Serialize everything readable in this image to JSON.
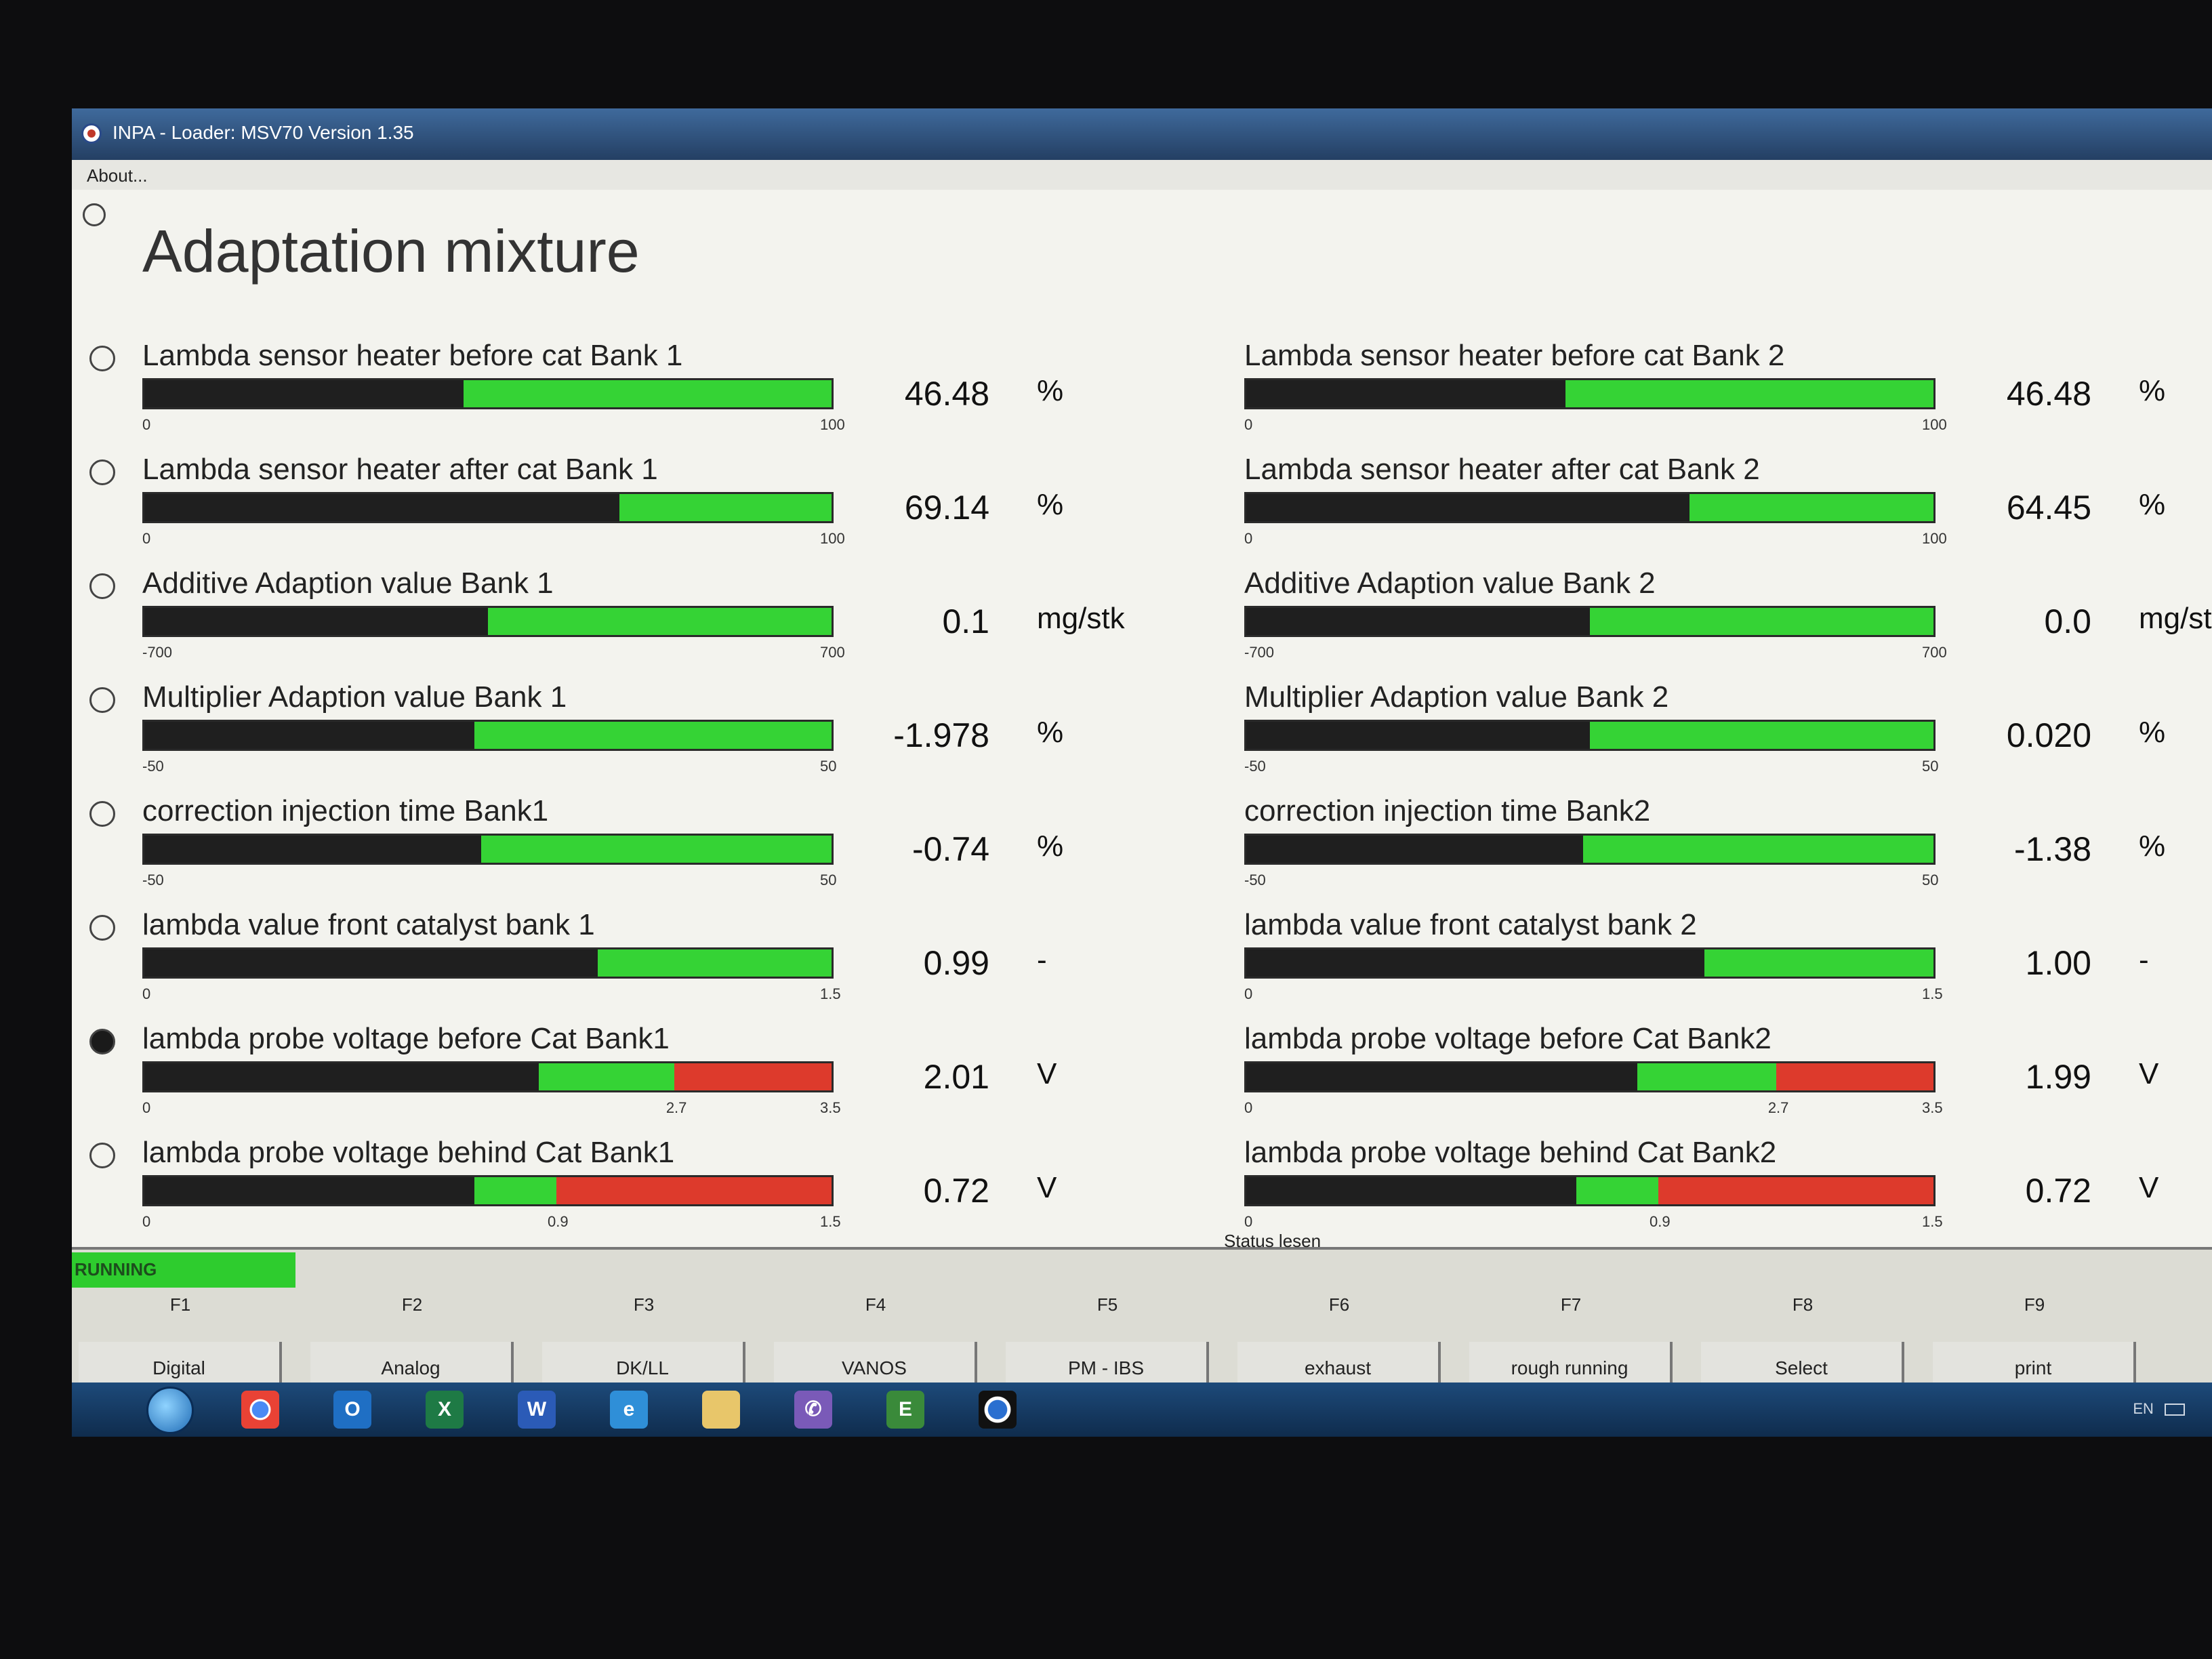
{
  "window": {
    "title": "INPA - Loader: MSV70 Version 1.35"
  },
  "menu": {
    "about": "About..."
  },
  "page_title": "Adaptation mixture",
  "left_meters": [
    {
      "label": "Lambda sensor heater before cat Bank 1",
      "value": "46.48",
      "unit": "%",
      "min_label": "0",
      "mid_label": "",
      "max_label": "100",
      "fill_fraction": 0.4648,
      "zone": "green",
      "checked": false
    },
    {
      "label": "Lambda sensor heater after cat Bank 1",
      "value": "69.14",
      "unit": "%",
      "min_label": "0",
      "mid_label": "",
      "max_label": "100",
      "fill_fraction": 0.6914,
      "zone": "green",
      "checked": false
    },
    {
      "label": "Additive Adaption value Bank 1",
      "value": "0.1",
      "unit": "mg/stk",
      "min_label": "-700",
      "mid_label": "",
      "max_label": "700",
      "fill_fraction": 0.5,
      "zone": "green",
      "checked": false
    },
    {
      "label": "Multiplier Adaption value Bank 1",
      "value": "-1.978",
      "unit": "%",
      "min_label": "-50",
      "mid_label": "",
      "max_label": "50",
      "fill_fraction": 0.48,
      "zone": "green",
      "checked": false
    },
    {
      "label": "correction injection time Bank1",
      "value": "-0.74",
      "unit": "%",
      "min_label": "-50",
      "mid_label": "",
      "max_label": "50",
      "fill_fraction": 0.49,
      "zone": "green",
      "checked": false
    },
    {
      "label": "lambda value front catalyst bank 1",
      "value": "0.99",
      "unit": "-",
      "min_label": "0",
      "mid_label": "",
      "max_label": "1.5",
      "fill_fraction": 0.66,
      "zone": "green",
      "checked": false
    },
    {
      "label": "lambda probe voltage before Cat Bank1",
      "value": "2.01",
      "unit": "V",
      "min_label": "0",
      "mid_label": "2.7",
      "max_label": "3.5",
      "fill_fraction": 0.5743,
      "zone": "split",
      "zone_split_fraction": 0.7714,
      "checked": true
    },
    {
      "label": "lambda probe voltage behind Cat Bank1",
      "value": "0.72",
      "unit": "V",
      "min_label": "0",
      "mid_label": "0.9",
      "max_label": "1.5",
      "fill_fraction": 0.48,
      "zone": "split",
      "zone_split_fraction": 0.6,
      "checked": false
    }
  ],
  "right_meters": [
    {
      "label": "Lambda sensor heater before cat Bank 2",
      "value": "46.48",
      "unit": "%",
      "min_label": "0",
      "mid_label": "",
      "max_label": "100",
      "fill_fraction": 0.4648,
      "zone": "green"
    },
    {
      "label": "Lambda sensor heater after cat Bank 2",
      "value": "64.45",
      "unit": "%",
      "min_label": "0",
      "mid_label": "",
      "max_label": "100",
      "fill_fraction": 0.6445,
      "zone": "green"
    },
    {
      "label": "Additive Adaption value Bank 2",
      "value": "0.0",
      "unit": "mg/stk",
      "min_label": "-700",
      "mid_label": "",
      "max_label": "700",
      "fill_fraction": 0.5,
      "zone": "green"
    },
    {
      "label": "Multiplier Adaption value Bank 2",
      "value": "0.020",
      "unit": "%",
      "min_label": "-50",
      "mid_label": "",
      "max_label": "50",
      "fill_fraction": 0.5,
      "zone": "green"
    },
    {
      "label": "correction injection time Bank2",
      "value": "-1.38",
      "unit": "%",
      "min_label": "-50",
      "mid_label": "",
      "max_label": "50",
      "fill_fraction": 0.49,
      "zone": "green"
    },
    {
      "label": "lambda value front catalyst bank 2",
      "value": "1.00",
      "unit": "-",
      "min_label": "0",
      "mid_label": "",
      "max_label": "1.5",
      "fill_fraction": 0.6667,
      "zone": "green"
    },
    {
      "label": "lambda probe voltage before Cat Bank2",
      "value": "1.99",
      "unit": "V",
      "min_label": "0",
      "mid_label": "2.7",
      "max_label": "3.5",
      "fill_fraction": 0.5686,
      "zone": "split",
      "zone_split_fraction": 0.7714
    },
    {
      "label": "lambda probe voltage behind Cat Bank2",
      "value": "0.72",
      "unit": "V",
      "min_label": "0",
      "mid_label": "0.9",
      "max_label": "1.5",
      "fill_fraction": 0.48,
      "zone": "split",
      "zone_split_fraction": 0.6
    }
  ],
  "status": {
    "running": "RUNNING",
    "caption": "Status lesen"
  },
  "function_keys": [
    {
      "key": "F1",
      "label": "Digital"
    },
    {
      "key": "F2",
      "label": "Analog"
    },
    {
      "key": "F3",
      "label": "DK/LL"
    },
    {
      "key": "F4",
      "label": "VANOS"
    },
    {
      "key": "F5",
      "label": "PM - IBS"
    },
    {
      "key": "F6",
      "label": "exhaust"
    },
    {
      "key": "F7",
      "label": "rough running"
    },
    {
      "key": "F8",
      "label": "Select"
    },
    {
      "key": "F9",
      "label": "print"
    }
  ],
  "taskbar": {
    "icons": [
      "chrome-icon",
      "outlook-icon",
      "excel-icon",
      "word-icon",
      "internet-explorer-icon",
      "file-explorer-icon",
      "viber-icon",
      "ediabas-icon",
      "bmw-icon"
    ],
    "tray_language": "EN"
  },
  "colors": {
    "bar_green": "#35d335",
    "bar_red": "#dd3a2c",
    "bar_fill": "#1f1f1f",
    "running_green": "#2ecc2e"
  }
}
